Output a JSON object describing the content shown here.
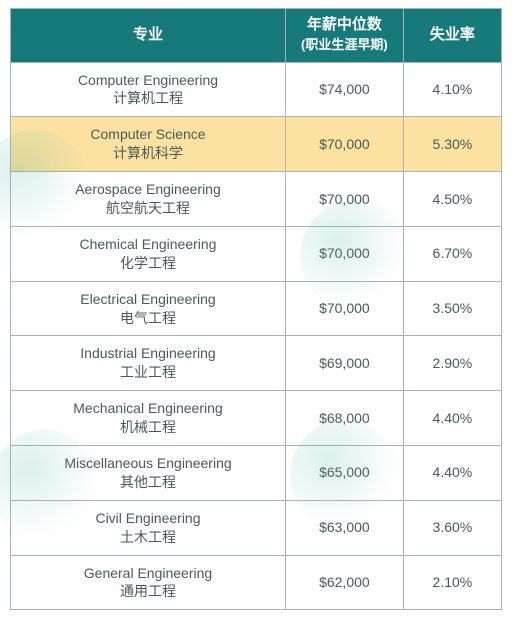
{
  "table": {
    "type": "table",
    "header_bg": "#167a7a",
    "header_fg": "#ffffff",
    "border_color": "#a8b5b5",
    "highlight_bg": "#fbe2a0",
    "row_bg": "#ffffff",
    "text_color": "#4a5a5a",
    "columns": [
      {
        "label_top": "专业",
        "label_sub": "",
        "width_pct": 56,
        "align": "center"
      },
      {
        "label_top": "年薪中位数",
        "label_sub": "(职业生涯早期)",
        "width_pct": 24,
        "align": "center"
      },
      {
        "label_top": "失业率",
        "label_sub": "",
        "width_pct": 20,
        "align": "center"
      }
    ],
    "rows": [
      {
        "major_en": "Computer Engineering",
        "major_zh": "计算机工程",
        "salary": "$74,000",
        "unemp": "4.10%",
        "highlight": false
      },
      {
        "major_en": "Computer Science",
        "major_zh": "计算机科学",
        "salary": "$70,000",
        "unemp": "5.30%",
        "highlight": true
      },
      {
        "major_en": "Aerospace Engineering",
        "major_zh": "航空航天工程",
        "salary": "$70,000",
        "unemp": "4.50%",
        "highlight": false
      },
      {
        "major_en": "Chemical Engineering",
        "major_zh": "化学工程",
        "salary": "$70,000",
        "unemp": "6.70%",
        "highlight": false
      },
      {
        "major_en": "Electrical Engineering",
        "major_zh": "电气工程",
        "salary": "$70,000",
        "unemp": "3.50%",
        "highlight": false
      },
      {
        "major_en": "Industrial Engineering",
        "major_zh": "工业工程",
        "salary": "$69,000",
        "unemp": "2.90%",
        "highlight": false
      },
      {
        "major_en": "Mechanical Engineering",
        "major_zh": "机械工程",
        "salary": "$68,000",
        "unemp": "4.40%",
        "highlight": false
      },
      {
        "major_en": "Miscellaneous Engineering",
        "major_zh": "其他工程",
        "salary": "$65,000",
        "unemp": "4.40%",
        "highlight": false
      },
      {
        "major_en": "Civil Engineering",
        "major_zh": "土木工程",
        "salary": "$63,000",
        "unemp": "3.60%",
        "highlight": false
      },
      {
        "major_en": "General Engineering",
        "major_zh": "通用工程",
        "salary": "$62,000",
        "unemp": "2.10%",
        "highlight": false
      }
    ]
  }
}
